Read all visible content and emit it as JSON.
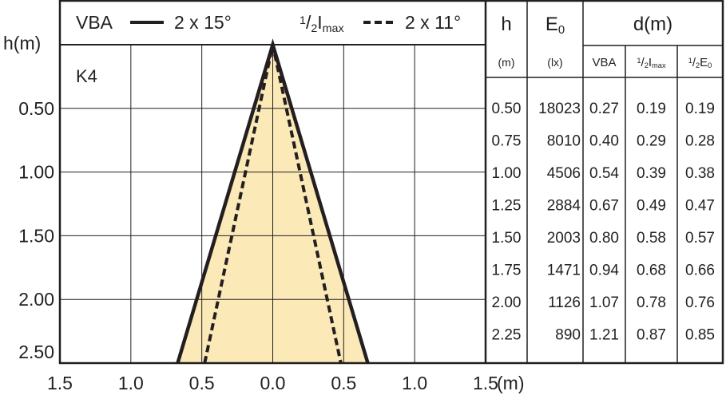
{
  "chart_data": {
    "type": "beam",
    "y_label": "h(m)",
    "x_label": "(m)",
    "annotation": "K4",
    "xlim": [
      -1.5,
      1.5
    ],
    "xticks": [
      {
        "value": -1.5,
        "label": "1.5"
      },
      {
        "value": -1,
        "label": "1.0"
      },
      {
        "value": -0.5,
        "label": "0.5"
      },
      {
        "value": 0,
        "label": "0.0"
      },
      0.5,
      {
        "value": 1,
        "label": "1.0"
      },
      1.5
    ],
    "ylim": [
      0,
      2.5
    ],
    "yticks": [
      {
        "value": 0.5,
        "label": "0.50"
      },
      {
        "value": 1,
        "label": "1.00"
      },
      {
        "value": 1.5,
        "label": "1.50"
      },
      {
        "value": 2,
        "label": "2.00"
      },
      {
        "value": 2.5,
        "label": "2.50"
      }
    ],
    "grid": true,
    "series": [
      {
        "label": [
          {
            "t": "VBA"
          }
        ],
        "name": "2 x 15°",
        "color": "#231f20",
        "fill": "#fbe9b7",
        "dashed": false,
        "x": [
          -0.67,
          0,
          0.67
        ],
        "values": [
          2.5,
          0,
          2.5
        ]
      },
      {
        "label": [
          {
            "t": "1",
            "s": "sup"
          },
          {
            "t": "/"
          },
          {
            "t": "2",
            "s": "sub"
          },
          {
            "t": "I"
          },
          {
            "t": "max",
            "s": "sub"
          }
        ],
        "name": "2 x 11°",
        "color": "#231f20",
        "dashed": true,
        "x": [
          -0.48,
          0,
          0.48
        ],
        "values": [
          2.5,
          0,
          2.5
        ]
      }
    ]
  },
  "table": {
    "header": [
      [
        {
          "t": "h"
        }
      ],
      [
        {
          "t": "E"
        },
        {
          "t": "0",
          "s": "sub"
        }
      ],
      [
        {
          "t": "d(m)"
        }
      ]
    ],
    "units": [
      [
        {
          "t": "(m)"
        }
      ],
      [
        {
          "t": "(lx)"
        }
      ],
      [
        {
          "t": "VBA"
        }
      ],
      [
        {
          "t": "1",
          "s": "sup"
        },
        {
          "t": "/"
        },
        {
          "t": "2",
          "s": "sub"
        },
        {
          "t": "I"
        },
        {
          "t": "max",
          "s": "sub"
        }
      ],
      [
        {
          "t": "1",
          "s": "sup"
        },
        {
          "t": "/"
        },
        {
          "t": "2",
          "s": "sub"
        },
        {
          "t": "E"
        },
        {
          "t": "0",
          "s": "sub"
        }
      ]
    ],
    "rows": [
      [
        "0.50",
        "18023",
        "0.27",
        "0.19",
        "0.19"
      ],
      [
        "0.75",
        "8010",
        "0.40",
        "0.29",
        "0.28"
      ],
      [
        "1.00",
        "4506",
        "0.54",
        "0.39",
        "0.38"
      ],
      [
        "1.25",
        "2884",
        "0.67",
        "0.49",
        "0.47"
      ],
      [
        "1.50",
        "2003",
        "0.80",
        "0.58",
        "0.57"
      ],
      [
        "1.75",
        "1471",
        "0.94",
        "0.68",
        "0.66"
      ],
      [
        "2.00",
        "1126",
        "1.07",
        "0.78",
        "0.76"
      ],
      [
        "2.25",
        "890",
        "1.21",
        "0.87",
        "0.85"
      ]
    ]
  }
}
